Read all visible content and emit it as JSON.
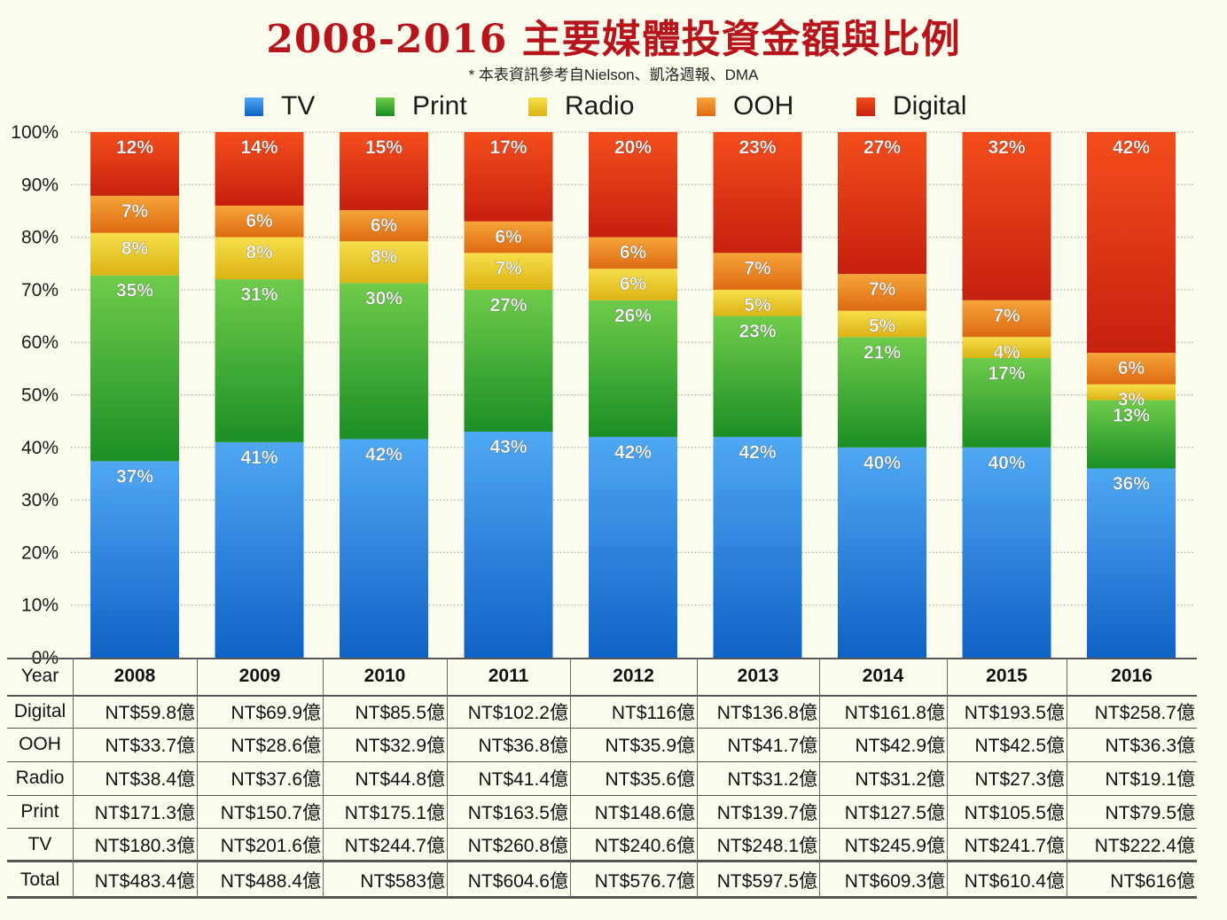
{
  "title": "2008-2016 主要媒體投資金額與比例",
  "subtitle": "* 本表資訊參考自Nielson、凱洛週報、DMA",
  "colors": {
    "TV": [
      "#4fa8f3",
      "#0f62c6"
    ],
    "Print": [
      "#6fcc4a",
      "#1b8f25"
    ],
    "Radio": [
      "#f6df4a",
      "#dcb314"
    ],
    "OOH": [
      "#f6a538",
      "#de6a12"
    ],
    "Digital": [
      "#f44e1c",
      "#c6200f"
    ],
    "title": "#b8141b",
    "background": "#fdfdef"
  },
  "chart_data": {
    "type": "bar",
    "stacked": true,
    "title": "2008-2016 主要媒體投資金額與比例",
    "categories": [
      "2008",
      "2009",
      "2010",
      "2011",
      "2012",
      "2013",
      "2014",
      "2015",
      "2016"
    ],
    "series": [
      {
        "name": "TV",
        "values": [
          37,
          41,
          42,
          43,
          42,
          42,
          40,
          40,
          36
        ],
        "labels": [
          "37%",
          "41%",
          "42%",
          "43%",
          "42%",
          "42%",
          "40%",
          "40%",
          "36%"
        ]
      },
      {
        "name": "Print",
        "values": [
          35,
          31,
          30,
          27,
          26,
          23,
          21,
          17,
          13
        ],
        "labels": [
          "35%",
          "31%",
          "30%",
          "27%",
          "26%",
          "23%",
          "21%",
          "17%",
          "13%"
        ]
      },
      {
        "name": "Radio",
        "values": [
          8,
          8,
          8,
          7,
          6,
          5,
          5,
          4,
          3
        ],
        "labels": [
          "8%",
          "8%",
          "8%",
          "7%",
          "6%",
          "5%",
          "5%",
          "4%",
          "3%"
        ]
      },
      {
        "name": "OOH",
        "values": [
          7,
          6,
          6,
          6,
          6,
          7,
          7,
          7,
          6
        ],
        "labels": [
          "7%",
          "6%",
          "6%",
          "6%",
          "6%",
          "7%",
          "7%",
          "7%",
          "6%"
        ]
      },
      {
        "name": "Digital",
        "values": [
          12,
          14,
          15,
          17,
          20,
          23,
          27,
          32,
          42
        ],
        "labels": [
          "12%",
          "14%",
          "15%",
          "17%",
          "20%",
          "23%",
          "27%",
          "32%",
          "42%"
        ]
      }
    ],
    "ylim": [
      0,
      100
    ],
    "yticks": [
      "0%",
      "10%",
      "20%",
      "30%",
      "40%",
      "50%",
      "60%",
      "70%",
      "80%",
      "90%",
      "100%"
    ],
    "grid": true,
    "legend": "top"
  },
  "table": {
    "year_label": "Year",
    "years": [
      "2008",
      "2009",
      "2010",
      "2011",
      "2012",
      "2013",
      "2014",
      "2015",
      "2016"
    ],
    "rows": [
      {
        "label": "Digital",
        "values": [
          "NT$59.8億",
          "NT$69.9億",
          "NT$85.5億",
          "NT$102.2億",
          "NT$116億",
          "NT$136.8億",
          "NT$161.8億",
          "NT$193.5億",
          "NT$258.7億"
        ]
      },
      {
        "label": "OOH",
        "values": [
          "NT$33.7億",
          "NT$28.6億",
          "NT$32.9億",
          "NT$36.8億",
          "NT$35.9億",
          "NT$41.7億",
          "NT$42.9億",
          "NT$42.5億",
          "NT$36.3億"
        ]
      },
      {
        "label": "Radio",
        "values": [
          "NT$38.4億",
          "NT$37.6億",
          "NT$44.8億",
          "NT$41.4億",
          "NT$35.6億",
          "NT$31.2億",
          "NT$31.2億",
          "NT$27.3億",
          "NT$19.1億"
        ]
      },
      {
        "label": "Print",
        "values": [
          "NT$171.3億",
          "NT$150.7億",
          "NT$175.1億",
          "NT$163.5億",
          "NT$148.6億",
          "NT$139.7億",
          "NT$127.5億",
          "NT$105.5億",
          "NT$79.5億"
        ]
      },
      {
        "label": "TV",
        "values": [
          "NT$180.3億",
          "NT$201.6億",
          "NT$244.7億",
          "NT$260.8億",
          "NT$240.6億",
          "NT$248.1億",
          "NT$245.9億",
          "NT$241.7億",
          "NT$222.4億"
        ]
      }
    ],
    "total": {
      "label": "Total",
      "values": [
        "NT$483.4億",
        "NT$488.4億",
        "NT$583億",
        "NT$604.6億",
        "NT$576.7億",
        "NT$597.5億",
        "NT$609.3億",
        "NT$610.4億",
        "NT$616億"
      ]
    }
  }
}
